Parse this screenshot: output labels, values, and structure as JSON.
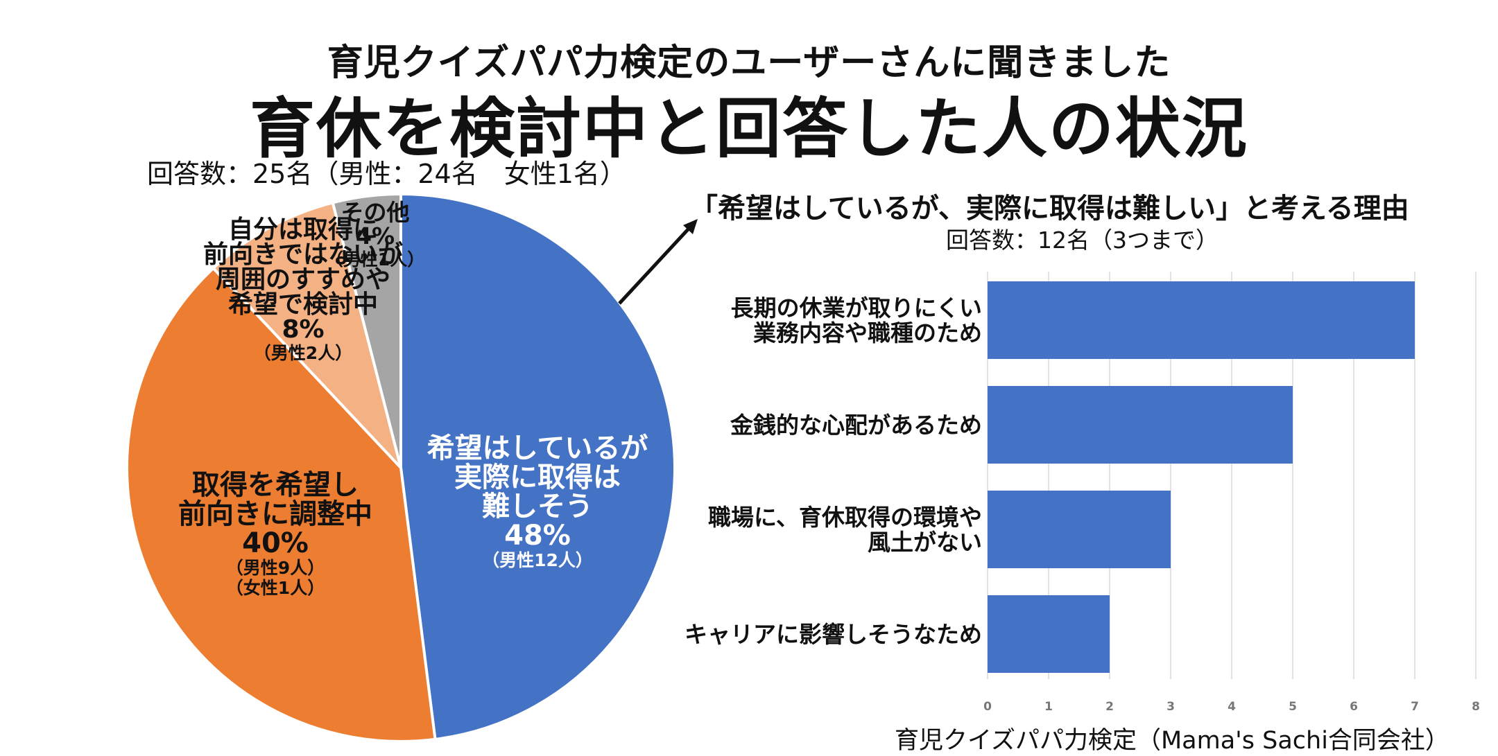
{
  "header": {
    "subtitle": "育児クイズパパ力検定のユーザーさんに聞きました",
    "title": "育休を検討中と回答した人の状況"
  },
  "pie_respondents": "回答数：25名（男性：24名　女性1名）",
  "bar_title": "「希望はしているが、実際に取得は難しい」と考える理由",
  "bar_respondents": "回答数：12名（3つまで）",
  "footer": "育児クイズパパ力検定（Mama's Sachi合同会社）",
  "colors": {
    "blue": "#4472C4",
    "orange": "#ED7D31",
    "light_orange": "#F4B183",
    "gray": "#A5A5A5",
    "bar": "#4472C4",
    "grid": "#D9D9D9"
  },
  "chart_data": [
    {
      "type": "pie",
      "title": "育休を検討中と回答した人の状況",
      "slices": [
        {
          "name": "希望はしているが実際に取得は難しそう",
          "lines": [
            "希望はしているが",
            "実際に取得は",
            "難しそう"
          ],
          "value": 48,
          "pct_label": "48%",
          "details": [
            "（男性12人）"
          ],
          "color": "#4472C4"
        },
        {
          "name": "取得を希望し前向きに調整中",
          "lines": [
            "取得を希望し",
            "前向きに調整中"
          ],
          "value": 40,
          "pct_label": "40%",
          "details": [
            "（男性9人）",
            "（女性1人）"
          ],
          "color": "#ED7D31"
        },
        {
          "name": "自分は取得に前向きではないが周囲のすすめや希望で検討中",
          "lines": [
            "自分は取得に",
            "前向きではないが",
            "周囲のすすめや",
            "希望で検討中"
          ],
          "value": 8,
          "pct_label": "8%",
          "details": [
            "（男性2人）"
          ],
          "color": "#F4B183"
        },
        {
          "name": "その他",
          "lines": [
            "その他"
          ],
          "value": 4,
          "pct_label": "4%",
          "details": [
            "（男性1人）"
          ],
          "color": "#A5A5A5"
        }
      ]
    },
    {
      "type": "bar",
      "orientation": "horizontal",
      "title": "「希望はしているが、実際に取得は難しい」と考える理由",
      "categories": [
        {
          "lines": [
            "長期の休業が取りにくい",
            "業務内容や職種のため"
          ]
        },
        {
          "lines": [
            "金銭的な心配があるため"
          ]
        },
        {
          "lines": [
            "職場に、育休取得の環境や",
            "風土がない"
          ]
        },
        {
          "lines": [
            "キャリアに影響しそうなため"
          ]
        }
      ],
      "values": [
        7,
        5,
        3,
        2
      ],
      "xlim": [
        0,
        8
      ],
      "xticks": [
        "0",
        "1",
        "2",
        "3",
        "4",
        "5",
        "6",
        "7",
        "8"
      ],
      "grid": true
    }
  ]
}
